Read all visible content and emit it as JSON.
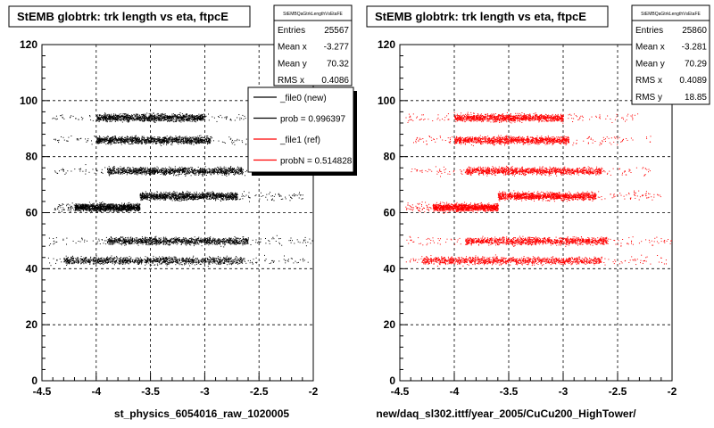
{
  "chart_data": [
    {
      "type": "scatter",
      "title": "StEMB globtrk: trk length vs eta, ftpcE",
      "xlabel": "st_physics_6054016_raw_1020005",
      "ylabel": "",
      "xlim": [
        -4.5,
        -2
      ],
      "ylim": [
        0,
        120
      ],
      "xticks": [
        "-4.5",
        "-4",
        "-3.5",
        "-3",
        "-2.5",
        "-2"
      ],
      "yticks": [
        "0",
        "20",
        "40",
        "60",
        "80",
        "100",
        "120"
      ],
      "grid": true,
      "color": "#000000",
      "bands": [
        {
          "y": 94,
          "x_dense": [
            -4.0,
            -3.0
          ],
          "x_sparse": [
            -4.45,
            -2.1
          ]
        },
        {
          "y": 86,
          "x_dense": [
            -4.0,
            -2.95
          ],
          "x_sparse": [
            -4.4,
            -2.2
          ]
        },
        {
          "y": 75,
          "x_dense": [
            -3.9,
            -2.65
          ],
          "x_sparse": [
            -4.4,
            -2.4
          ]
        },
        {
          "y": 66,
          "x_dense": [
            -3.6,
            -2.7
          ],
          "x_sparse": [
            -3.6,
            -2.1
          ]
        },
        {
          "y": 62,
          "x_dense": [
            -4.2,
            -3.6
          ],
          "x_sparse": [
            -4.4,
            -3.6
          ]
        },
        {
          "y": 50,
          "x_dense": [
            -3.9,
            -2.6
          ],
          "x_sparse": [
            -4.45,
            -2.0
          ]
        },
        {
          "y": 43,
          "x_dense": [
            -4.3,
            -2.65
          ],
          "x_sparse": [
            -4.45,
            -2.05
          ]
        }
      ],
      "stats": {
        "name": "StEMBQaGtrkLengthVsEtaFE",
        "rows": [
          [
            "Entries",
            "25567"
          ],
          [
            "Mean x",
            "-3.277"
          ],
          [
            "Mean y",
            "70.32"
          ],
          [
            "RMS x",
            "0.4086"
          ]
        ]
      },
      "legend": {
        "position": "top-right",
        "entries": [
          {
            "label": "_file0 (new)",
            "color": "#000000"
          },
          {
            "label": "prob = 0.996397",
            "color": "#000000"
          },
          {
            "label": "_file1 (ref)",
            "color": "#ff0000"
          },
          {
            "label": "probN = 0.514828",
            "color": "#ff0000"
          }
        ]
      }
    },
    {
      "type": "scatter",
      "title": "StEMB globtrk: trk length vs eta, ftpcE",
      "xlabel": "new/daq_sl302.ittf/year_2005/CuCu200_HighTower/",
      "ylabel": "",
      "xlim": [
        -4.5,
        -2
      ],
      "ylim": [
        0,
        120
      ],
      "xticks": [
        "-4.5",
        "-4",
        "-3.5",
        "-3",
        "-2.5",
        "-2"
      ],
      "yticks": [
        "0",
        "20",
        "40",
        "60",
        "80",
        "100",
        "120"
      ],
      "grid": true,
      "color": "#ff0000",
      "bands": [
        {
          "y": 94,
          "x_dense": [
            -4.0,
            -3.0
          ],
          "x_sparse": [
            -4.45,
            -2.3
          ]
        },
        {
          "y": 86,
          "x_dense": [
            -4.0,
            -2.95
          ],
          "x_sparse": [
            -4.4,
            -2.2
          ]
        },
        {
          "y": 75,
          "x_dense": [
            -3.9,
            -2.65
          ],
          "x_sparse": [
            -4.4,
            -2.2
          ]
        },
        {
          "y": 66,
          "x_dense": [
            -3.6,
            -2.7
          ],
          "x_sparse": [
            -3.6,
            -2.1
          ]
        },
        {
          "y": 62,
          "x_dense": [
            -4.2,
            -3.6
          ],
          "x_sparse": [
            -4.45,
            -3.6
          ]
        },
        {
          "y": 50,
          "x_dense": [
            -3.9,
            -2.6
          ],
          "x_sparse": [
            -4.45,
            -2.0
          ]
        },
        {
          "y": 43,
          "x_dense": [
            -4.3,
            -2.65
          ],
          "x_sparse": [
            -4.45,
            -2.05
          ]
        }
      ],
      "stats": {
        "name": "StEMBQaGtrkLengthVsEtaFE",
        "rows": [
          [
            "Entries",
            "25860"
          ],
          [
            "Mean x",
            "-3.281"
          ],
          [
            "Mean y",
            "70.29"
          ],
          [
            "RMS x",
            "0.4089"
          ],
          [
            "RMS y",
            "18.85"
          ]
        ]
      },
      "legend": null
    }
  ]
}
